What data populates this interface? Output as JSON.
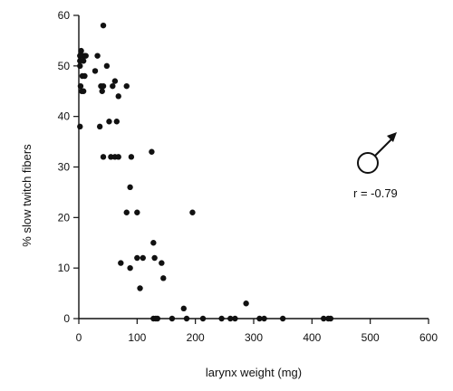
{
  "chart_data": {
    "type": "scatter",
    "title": "",
    "xlabel": "larynx weight (mg)",
    "ylabel": "% slow twitch fibers",
    "xlim": [
      0,
      600
    ],
    "ylim": [
      0,
      60
    ],
    "xticks": [
      0,
      100,
      200,
      300,
      400,
      500,
      600
    ],
    "yticks": [
      0,
      10,
      20,
      30,
      40,
      50,
      60
    ],
    "grid": false,
    "legend": "none",
    "annotation": "r = -0.79",
    "symbol": "male-symbol",
    "series": [
      {
        "marker_color": "#111111",
        "points": [
          [
            2,
            52
          ],
          [
            2,
            51
          ],
          [
            2,
            50
          ],
          [
            4,
            53
          ],
          [
            6,
            52
          ],
          [
            8,
            51
          ],
          [
            10,
            52
          ],
          [
            12,
            52
          ],
          [
            3,
            46
          ],
          [
            5,
            45
          ],
          [
            8,
            45
          ],
          [
            6,
            48
          ],
          [
            10,
            48
          ],
          [
            2,
            38
          ],
          [
            28,
            49
          ],
          [
            32,
            52
          ],
          [
            38,
            46
          ],
          [
            40,
            45
          ],
          [
            42,
            46
          ],
          [
            42,
            58
          ],
          [
            48,
            50
          ],
          [
            52,
            39
          ],
          [
            58,
            46
          ],
          [
            62,
            47
          ],
          [
            65,
            39
          ],
          [
            68,
            44
          ],
          [
            36,
            38
          ],
          [
            42,
            32
          ],
          [
            55,
            32
          ],
          [
            62,
            32
          ],
          [
            68,
            32
          ],
          [
            82,
            46
          ],
          [
            90,
            32
          ],
          [
            88,
            26
          ],
          [
            100,
            21
          ],
          [
            82,
            21
          ],
          [
            72,
            11
          ],
          [
            88,
            10
          ],
          [
            100,
            12
          ],
          [
            110,
            12
          ],
          [
            105,
            6
          ],
          [
            125,
            33
          ],
          [
            128,
            15
          ],
          [
            130,
            12
          ],
          [
            142,
            11
          ],
          [
            145,
            8
          ],
          [
            195,
            21
          ],
          [
            128,
            0
          ],
          [
            132,
            0
          ],
          [
            135,
            0
          ],
          [
            160,
            0
          ],
          [
            180,
            2
          ],
          [
            185,
            0
          ],
          [
            213,
            0
          ],
          [
            245,
            0
          ],
          [
            260,
            0
          ],
          [
            268,
            0
          ],
          [
            287,
            3
          ],
          [
            310,
            0
          ],
          [
            318,
            0
          ],
          [
            350,
            0
          ],
          [
            420,
            0
          ],
          [
            428,
            0
          ],
          [
            432,
            0
          ]
        ]
      }
    ]
  }
}
